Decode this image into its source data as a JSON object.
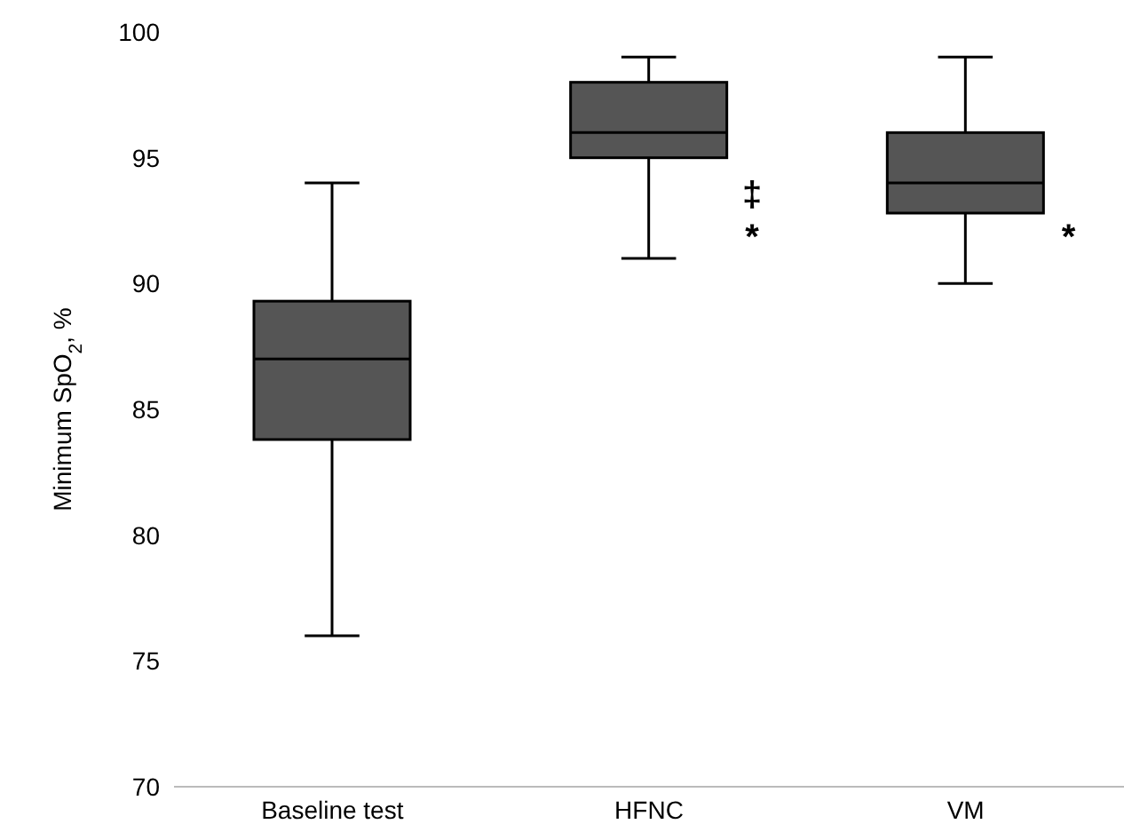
{
  "chart_data": {
    "type": "box",
    "ylabel": "Minimum SpO$_{2}$, %",
    "categories": [
      "Baseline test",
      "HFNC",
      "VM"
    ],
    "boxes": [
      {
        "low": 76,
        "q1": 83.8,
        "median": 87,
        "q3": 89.3,
        "high": 94
      },
      {
        "low": 91,
        "q1": 95,
        "median": 96,
        "q3": 98,
        "high": 99
      },
      {
        "low": 90,
        "q1": 92.8,
        "median": 94,
        "q3": 96,
        "high": 99
      }
    ],
    "color": "#555555",
    "ylim": [
      70,
      100
    ],
    "yticks": [
      70,
      75,
      80,
      85,
      90,
      95,
      100
    ],
    "grid": false,
    "annotations": [
      {
        "text": "‡",
        "x": "HFNC",
        "y": 93.5
      },
      {
        "text": "*",
        "x": "HFNC",
        "y": 91.8
      },
      {
        "text": "*",
        "x": "VM",
        "y": 91.8
      }
    ]
  }
}
